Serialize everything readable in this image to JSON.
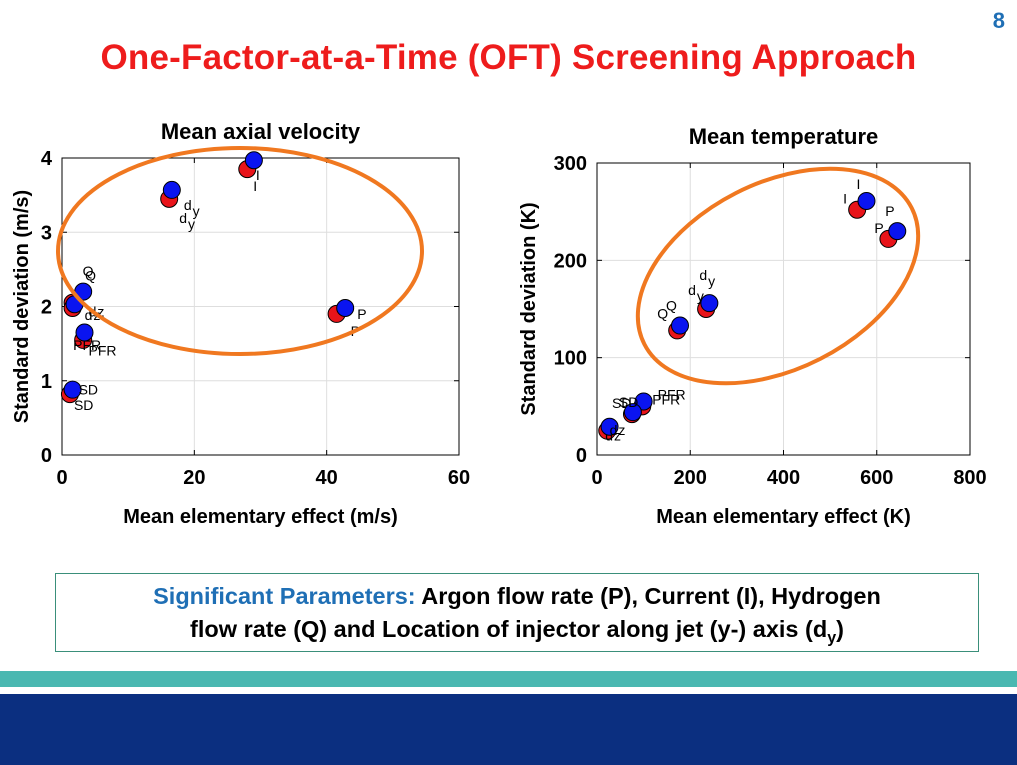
{
  "slide": {
    "number": "8",
    "title": "One-Factor-at-a-Time (OFT) Screening Approach"
  },
  "summary": {
    "lead": "Significant Parameters:",
    "line1": " Argon flow rate (P), Current (I), Hydrogen",
    "line2a": "flow rate (Q)  and Location of injector along jet (y-) axis (d",
    "line2_sub": "y",
    "line2b": ")"
  },
  "colors": {
    "red": "#e8141a",
    "blue": "#0a14f0",
    "ellipse": "#f07820",
    "title": "#ee1c1c",
    "accent": "#1f6fb5"
  },
  "chart_data": [
    {
      "type": "scatter",
      "title": "Mean axial velocity",
      "xlabel": "Mean elementary effect (m/s)",
      "ylabel": "Standard deviation (m/s)",
      "xlim": [
        0,
        60
      ],
      "ylim": [
        0,
        4
      ],
      "xticks": [
        0,
        20,
        40,
        60
      ],
      "yticks": [
        0,
        1,
        2,
        3,
        4
      ],
      "grid": true,
      "series": [
        {
          "color": "red",
          "points": [
            {
              "label": "I",
              "x": 28.0,
              "y": 3.85
            },
            {
              "label": "dy",
              "x": 16.2,
              "y": 3.45
            },
            {
              "label": "P",
              "x": 41.5,
              "y": 1.9
            },
            {
              "label": "Q",
              "x": 1.6,
              "y": 2.05
            },
            {
              "label": "dz",
              "x": 1.6,
              "y": 1.98
            },
            {
              "label": "PFR",
              "x": 3.2,
              "y": 1.55
            },
            {
              "label": "SD",
              "x": 1.2,
              "y": 0.82
            }
          ]
        },
        {
          "color": "blue",
          "points": [
            {
              "label": "I",
              "x": 29.0,
              "y": 3.97
            },
            {
              "label": "dy",
              "x": 16.6,
              "y": 3.57
            },
            {
              "label": "P",
              "x": 42.8,
              "y": 1.98
            },
            {
              "label": "Q",
              "x": 3.2,
              "y": 2.2
            },
            {
              "label": "dz",
              "x": 1.9,
              "y": 2.03
            },
            {
              "label": "PFR",
              "x": 3.4,
              "y": 1.65
            },
            {
              "label": "SD",
              "x": 1.6,
              "y": 0.88
            }
          ]
        }
      ]
    },
    {
      "type": "scatter",
      "title": "Mean temperature",
      "xlabel": "Mean elementary effect (K)",
      "ylabel": "Standard deviation (K)",
      "xlim": [
        0,
        800
      ],
      "ylim": [
        0,
        300
      ],
      "xticks": [
        0,
        200,
        400,
        600,
        800
      ],
      "yticks": [
        0,
        100,
        200,
        300
      ],
      "grid": true,
      "series": [
        {
          "color": "red",
          "points": [
            {
              "label": "I",
              "x": 558,
              "y": 252
            },
            {
              "label": "P",
              "x": 625,
              "y": 222
            },
            {
              "label": "dy",
              "x": 234,
              "y": 150
            },
            {
              "label": "Q",
              "x": 172,
              "y": 128
            },
            {
              "label": "PFR",
              "x": 97,
              "y": 50
            },
            {
              "label": "SD",
              "x": 75,
              "y": 42
            },
            {
              "label": "dz",
              "x": 22,
              "y": 25
            }
          ]
        },
        {
          "color": "blue",
          "points": [
            {
              "label": "I",
              "x": 578,
              "y": 261
            },
            {
              "label": "P",
              "x": 644,
              "y": 230
            },
            {
              "label": "dy",
              "x": 241,
              "y": 156
            },
            {
              "label": "Q",
              "x": 178,
              "y": 133
            },
            {
              "label": "PFR",
              "x": 100,
              "y": 55
            },
            {
              "label": "SD",
              "x": 77,
              "y": 44
            },
            {
              "label": "dz",
              "x": 27,
              "y": 29
            }
          ]
        }
      ]
    }
  ]
}
